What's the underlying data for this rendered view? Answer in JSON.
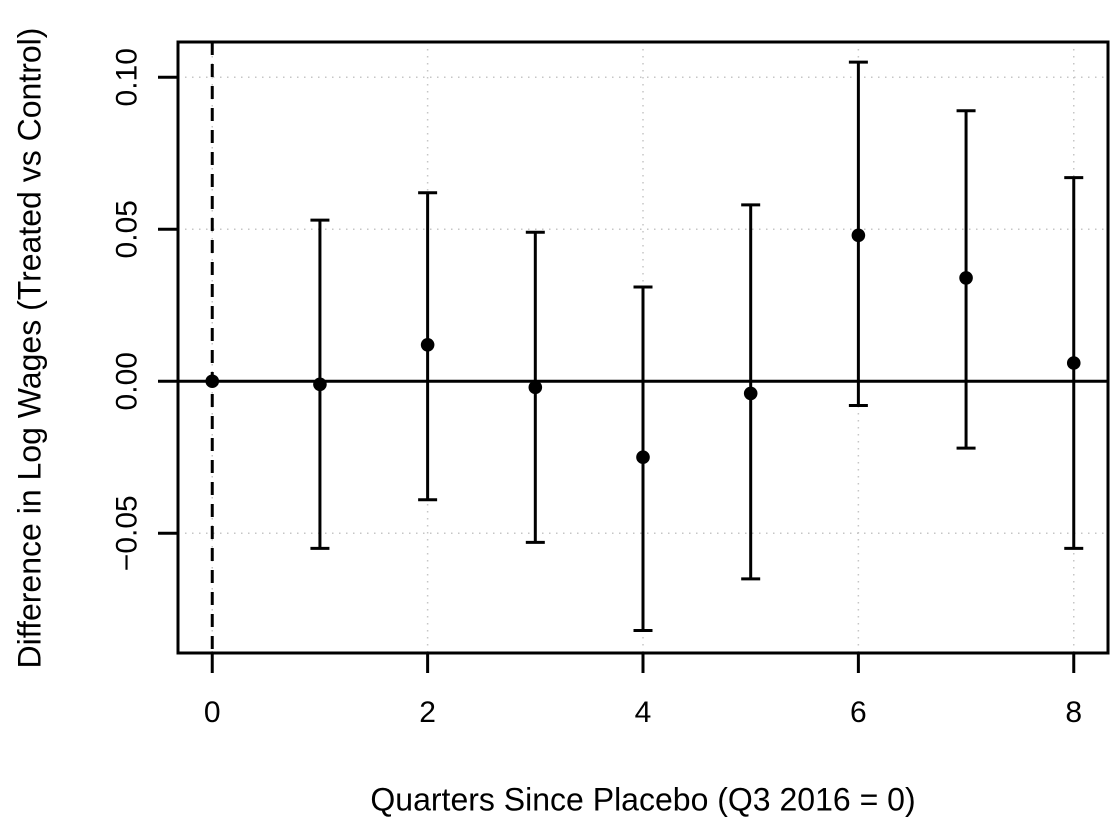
{
  "chart_data": {
    "type": "scatter",
    "subtype": "event-study-point-estimates-with-confidence-intervals",
    "title": "",
    "xlabel": "Quarters Since Placebo (Q3 2016 = 0)",
    "ylabel": "Difference in Log Wages (Treated vs Control)",
    "x": [
      0,
      1,
      2,
      3,
      4,
      5,
      6,
      7,
      8
    ],
    "estimates": [
      0.0,
      -0.001,
      0.012,
      -0.002,
      -0.025,
      -0.004,
      0.048,
      0.034,
      0.006
    ],
    "ci_lower": [
      null,
      -0.055,
      -0.039,
      -0.053,
      -0.082,
      -0.065,
      -0.008,
      -0.022,
      -0.055
    ],
    "ci_upper": [
      null,
      0.053,
      0.062,
      0.049,
      0.031,
      0.058,
      0.105,
      0.089,
      0.067
    ],
    "x_ticks": [
      0,
      2,
      4,
      6,
      8
    ],
    "x_tick_labels": [
      "0",
      "2",
      "4",
      "6",
      "8"
    ],
    "y_ticks": [
      -0.05,
      0,
      0.05,
      0.1
    ],
    "y_tick_labels": [
      "−0.05",
      "0.00",
      "0.05",
      "0.10"
    ],
    "xlim": [
      -0.318,
      8.318
    ],
    "ylim": [
      -0.0894,
      0.1116
    ],
    "reference_line_x": 0,
    "zero_line_y": 0,
    "grid": true,
    "grid_style": "dotted",
    "legend": null,
    "colors": {
      "point": "#000000",
      "error_bar": "#000000",
      "zero_line": "#000000",
      "reference_line": "#000000",
      "grid": "#c6c6c6",
      "axis": "#000000",
      "text": "#000000",
      "background": "#ffffff"
    }
  }
}
